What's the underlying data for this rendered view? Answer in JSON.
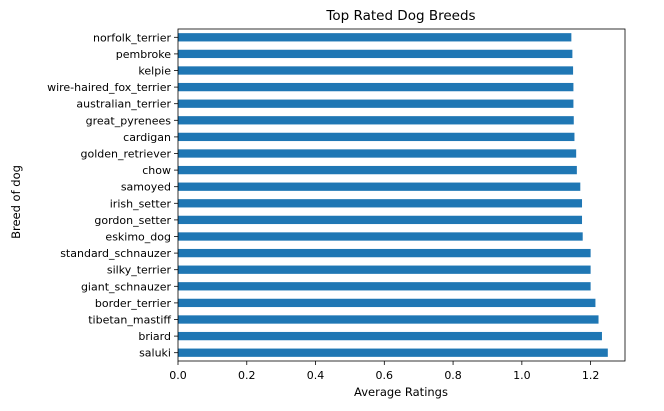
{
  "chart_data": {
    "type": "bar",
    "orientation": "horizontal",
    "title": "Top Rated Dog Breeds",
    "xlabel": "Average Ratings",
    "ylabel": "Breed of dog",
    "xlim": [
      0,
      1.3
    ],
    "xticks": [
      0.0,
      0.2,
      0.4,
      0.6,
      0.8,
      1.0,
      1.2
    ],
    "grid": false,
    "legend": "none",
    "bar_color": "#1f77b4",
    "categories": [
      "saluki",
      "briard",
      "tibetan_mastiff",
      "border_terrier",
      "giant_schnauzer",
      "silky_terrier",
      "standard_schnauzer",
      "eskimo_dog",
      "gordon_setter",
      "irish_setter",
      "samoyed",
      "chow",
      "golden_retriever",
      "cardigan",
      "great_pyrenees",
      "australian_terrier",
      "wire-haired_fox_terrier",
      "kelpie",
      "pembroke",
      "norfolk_terrier"
    ],
    "values": [
      1.25,
      1.233,
      1.223,
      1.214,
      1.2,
      1.2,
      1.2,
      1.177,
      1.175,
      1.175,
      1.17,
      1.16,
      1.158,
      1.153,
      1.151,
      1.15,
      1.15,
      1.149,
      1.147,
      1.144
    ]
  }
}
